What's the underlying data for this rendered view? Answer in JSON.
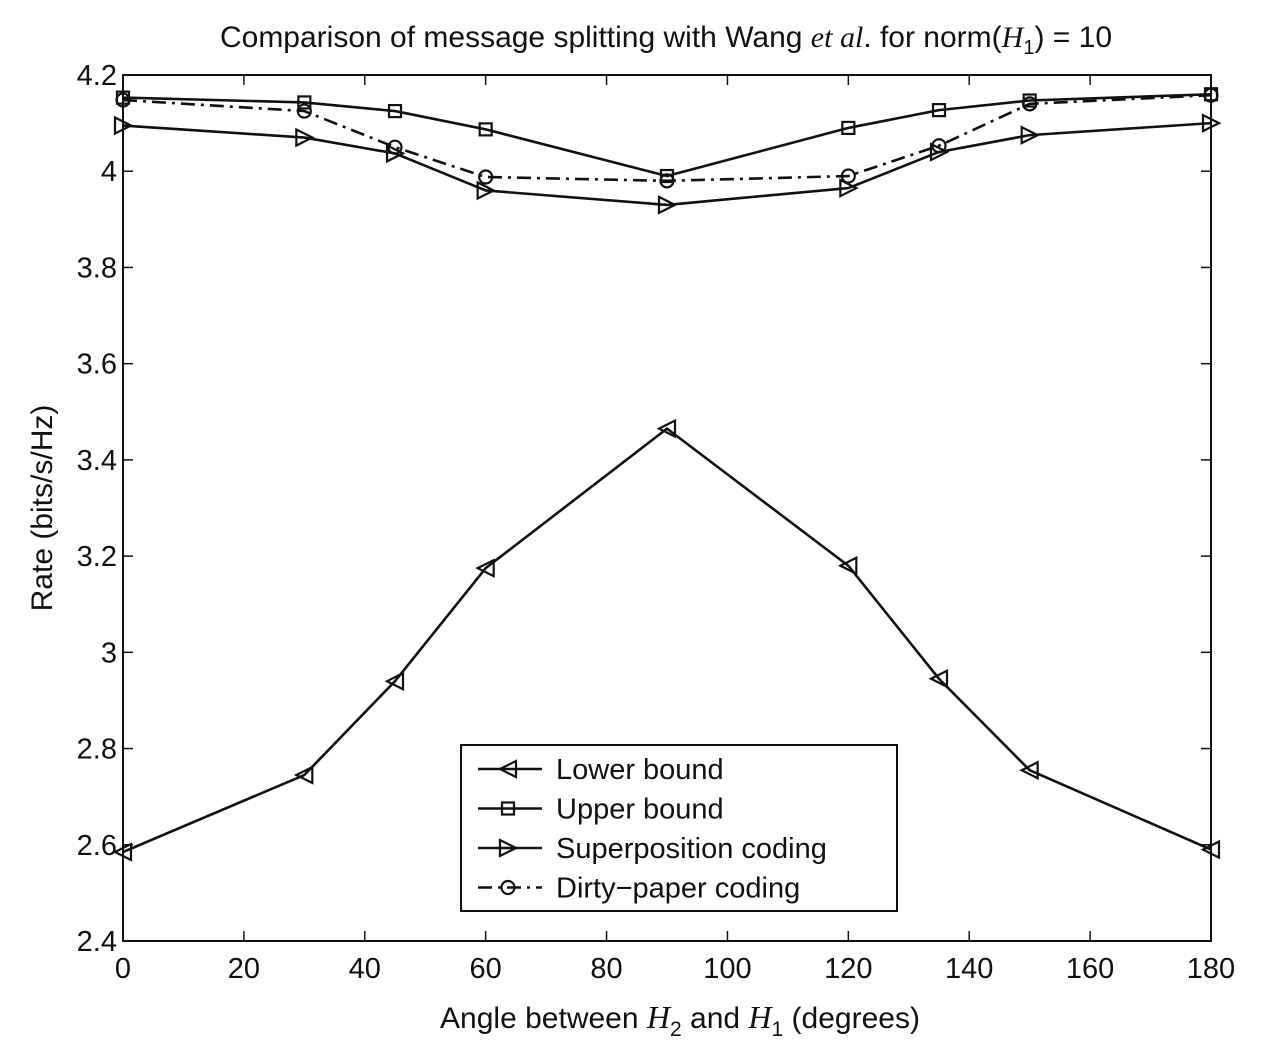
{
  "chart_data": {
    "type": "line",
    "title": {
      "prefix": "Comparison of message splitting with Wang ",
      "italic": "et al",
      "middle": ". for norm(",
      "symbol": "H",
      "symbol_sub": "1",
      "suffix": ") = 10"
    },
    "xlabel": {
      "prefix": "Angle between ",
      "sym_a": "H",
      "sub_a": "2",
      "middle": " and ",
      "sym_b": "H",
      "sub_b": "1",
      "suffix": " (degrees)"
    },
    "ylabel": "Rate (bits/s/Hz)",
    "xlim": [
      0,
      180
    ],
    "ylim": [
      2.4,
      4.2
    ],
    "xticks": [
      0,
      20,
      40,
      60,
      80,
      100,
      120,
      140,
      160,
      180
    ],
    "yticks": [
      2.4,
      2.6,
      2.8,
      3,
      3.2,
      3.4,
      3.6,
      3.8,
      4,
      4.2
    ],
    "ytick_labels": [
      "2.4",
      "2.6",
      "2.8",
      "3",
      "3.2",
      "3.4",
      "3.6",
      "3.8",
      "4",
      "4.2"
    ],
    "grid": false,
    "legend_position": "bottom-center",
    "x": [
      0,
      30,
      45,
      60,
      90,
      120,
      135,
      150,
      180
    ],
    "series": [
      {
        "name": "Lower bound",
        "marker": "triangle-left",
        "linestyle": "solid",
        "values": [
          2.585,
          2.745,
          2.94,
          3.175,
          3.465,
          3.18,
          2.945,
          2.755,
          2.59
        ]
      },
      {
        "name": "Upper bound",
        "marker": "square",
        "linestyle": "solid",
        "values": [
          4.153,
          4.143,
          4.125,
          4.087,
          3.99,
          4.09,
          4.127,
          4.147,
          4.16
        ]
      },
      {
        "name": "Superposition coding",
        "marker": "triangle-right",
        "linestyle": "solid",
        "values": [
          4.095,
          4.07,
          4.037,
          3.96,
          3.93,
          3.965,
          4.04,
          4.075,
          4.1
        ]
      },
      {
        "name": "Dirty−paper coding",
        "marker": "circle",
        "linestyle": "dashdot",
        "values": [
          4.148,
          4.125,
          4.05,
          3.988,
          3.98,
          3.99,
          4.053,
          4.14,
          4.158
        ]
      }
    ],
    "colors": {
      "ink": "#111111",
      "background": "#ffffff"
    }
  }
}
